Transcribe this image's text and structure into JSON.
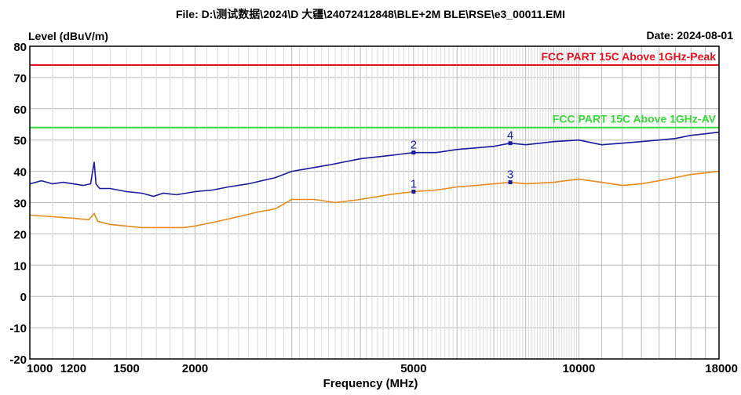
{
  "header": {
    "file_title": "File: D:\\测试数据\\2024\\D 大疆\\24072412848\\BLE+2M BLE\\RSE\\e3_00011.EMI",
    "date_label": "Date: 2024-08-01"
  },
  "chart_data": {
    "type": "line",
    "title": "",
    "ylabel": "Level (dBuV/m)",
    "xlabel": "Frequency (MHz)",
    "xscale": "log",
    "xlim": [
      1000,
      18000
    ],
    "ylim": [
      -20,
      80
    ],
    "grid": true,
    "y_ticks": [
      80,
      70,
      60,
      50,
      40,
      30,
      20,
      10,
      0,
      -10,
      -20
    ],
    "x_tick_labels": [
      {
        "value": 1000,
        "label": "1000"
      },
      {
        "value": 1200,
        "label": "1200"
      },
      {
        "value": 1500,
        "label": "1500"
      },
      {
        "value": 2000,
        "label": "2000"
      },
      {
        "value": 5000,
        "label": "5000"
      },
      {
        "value": 10000,
        "label": "10000"
      },
      {
        "value": 18000,
        "label": "18000"
      }
    ],
    "limits": [
      {
        "name": "FCC PART 15C Above 1GHz-Peak",
        "value": 74,
        "color": "#e8101a"
      },
      {
        "name": "FCC PART 15C Above 1GHz-AV",
        "value": 54,
        "color": "#33dd33"
      }
    ],
    "series": [
      {
        "color": "#1a1a9c",
        "x": [
          1000,
          1050,
          1100,
          1150,
          1200,
          1250,
          1290,
          1310,
          1320,
          1340,
          1400,
          1500,
          1600,
          1680,
          1750,
          1850,
          2000,
          2150,
          2300,
          2500,
          2800,
          3000,
          3500,
          4000,
          4500,
          5000,
          5500,
          6000,
          6500,
          7000,
          7500,
          8000,
          8500,
          9000,
          10000,
          11000,
          12000,
          13000,
          14000,
          15000,
          16000,
          17000,
          18000
        ],
        "values": [
          36,
          37,
          36,
          36.5,
          36,
          35.5,
          36,
          43,
          36,
          34.5,
          34.5,
          33.5,
          33,
          32,
          33,
          32.5,
          33.5,
          34,
          35,
          36,
          38,
          40,
          42,
          44,
          45,
          46,
          46,
          47,
          47.5,
          48,
          49,
          48.5,
          49,
          49.5,
          50,
          48.5,
          49,
          49.5,
          50,
          50.5,
          51.5,
          52,
          52.5
        ]
      },
      {
        "color": "#e88a1c",
        "x": [
          1000,
          1100,
          1200,
          1280,
          1310,
          1330,
          1400,
          1500,
          1600,
          1700,
          1800,
          1900,
          2000,
          2200,
          2400,
          2600,
          2800,
          3000,
          3300,
          3600,
          4000,
          4500,
          5000,
          5500,
          6000,
          6500,
          7000,
          7500,
          8000,
          9000,
          10000,
          11000,
          12000,
          13000,
          14000,
          15000,
          16000,
          17000,
          18000
        ],
        "values": [
          26,
          25.5,
          25,
          24.5,
          26.5,
          24,
          23,
          22.5,
          22,
          22,
          22,
          22,
          22.5,
          24,
          25.5,
          27,
          28,
          31,
          31,
          30,
          31,
          32.5,
          33.5,
          34,
          35,
          35.5,
          36,
          36.5,
          36,
          36.5,
          37.5,
          36.5,
          35.5,
          36,
          37,
          38,
          39,
          39.5,
          40
        ]
      }
    ],
    "markers": [
      {
        "label": "1",
        "x": 5000,
        "y": 33.5,
        "color": "#1a1a9c"
      },
      {
        "label": "2",
        "x": 5000,
        "y": 46,
        "color": "#1a1a9c"
      },
      {
        "label": "3",
        "x": 7500,
        "y": 36.5,
        "color": "#1a1a9c"
      },
      {
        "label": "4",
        "x": 7500,
        "y": 49,
        "color": "#1a1a9c"
      }
    ]
  }
}
